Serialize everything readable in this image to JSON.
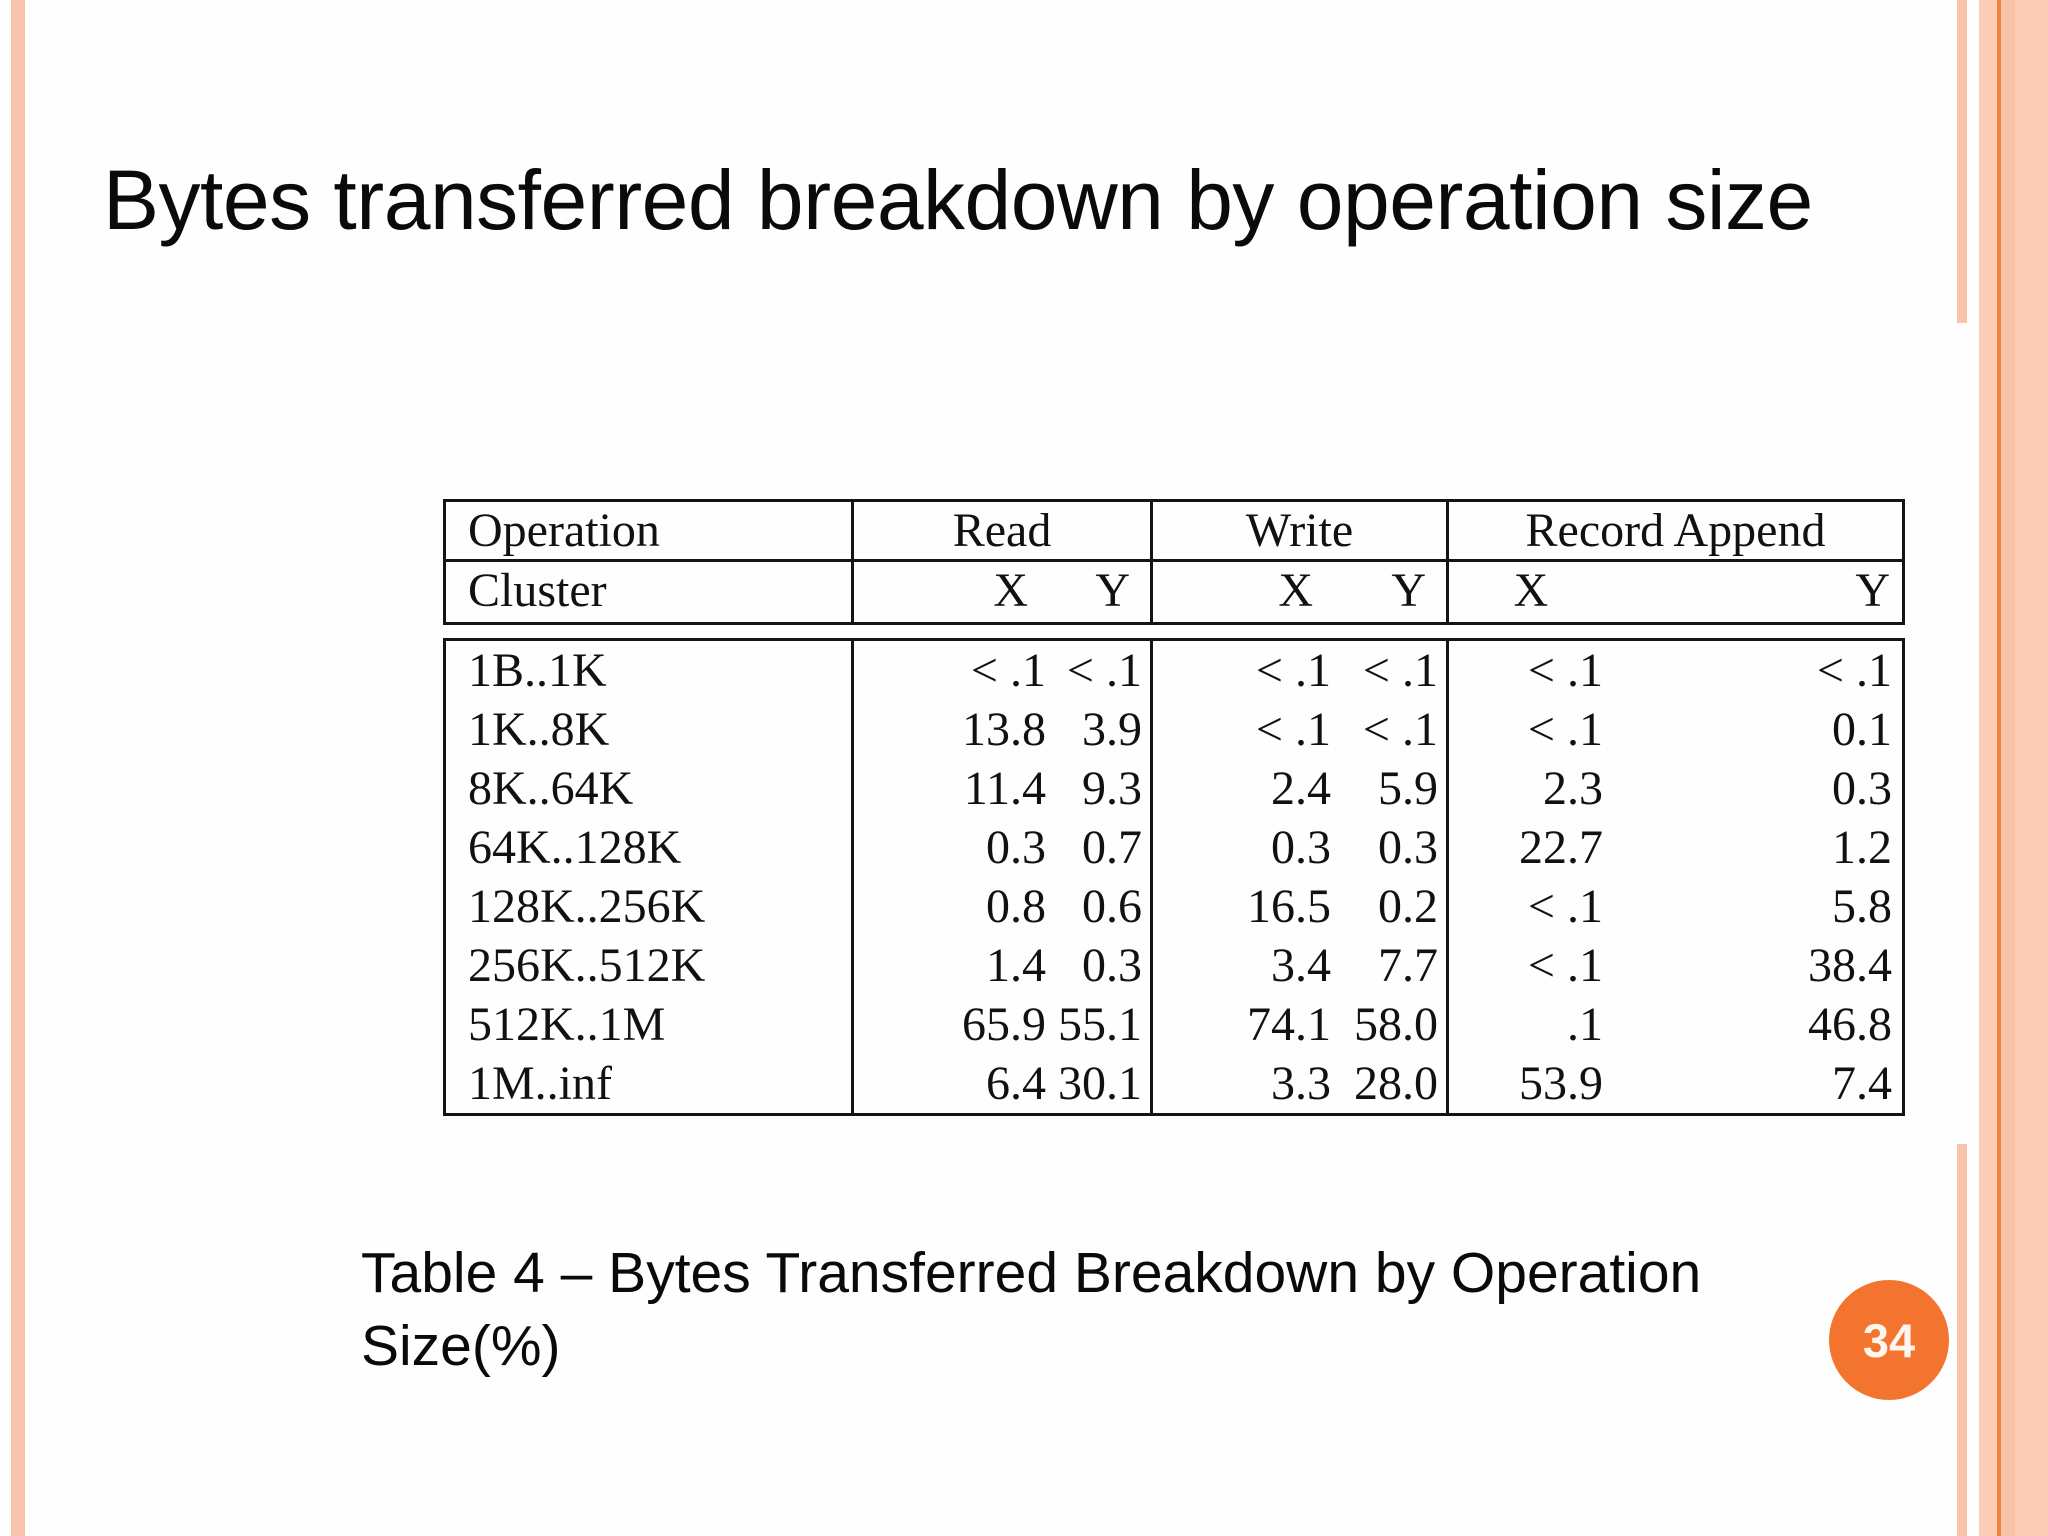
{
  "slide": {
    "title": "Bytes transferred breakdown by operation size",
    "caption_line1": "Table 4 – Bytes Transferred Breakdown by Operation",
    "caption_line2": "Size(%)",
    "page_number": "34"
  },
  "colors": {
    "stripe_light": "#f8c4ac",
    "band_base": "#fccdb5",
    "band_shade": "#f9c3a9",
    "band_line": "#f0813e",
    "page_badge": "#f3742f"
  },
  "chart_data": {
    "type": "table",
    "title": "Bytes Transferred Breakdown by Operation Size (%)",
    "column_groups": [
      {
        "label": "Operation",
        "columns": [
          "Cluster"
        ]
      },
      {
        "label": "Read",
        "columns": [
          "X",
          "Y"
        ]
      },
      {
        "label": "Write",
        "columns": [
          "X",
          "Y"
        ]
      },
      {
        "label": "Record Append",
        "columns": [
          "X",
          "Y"
        ]
      }
    ],
    "rows": [
      [
        "1B..1K",
        "< .1",
        "< .1",
        "< .1",
        "< .1",
        "< .1",
        "< .1"
      ],
      [
        "1K..8K",
        "13.8",
        "3.9",
        "< .1",
        "< .1",
        "< .1",
        "0.1"
      ],
      [
        "8K..64K",
        "11.4",
        "9.3",
        "2.4",
        "5.9",
        "2.3",
        "0.3"
      ],
      [
        "64K..128K",
        "0.3",
        "0.7",
        "0.3",
        "0.3",
        "22.7",
        "1.2"
      ],
      [
        "128K..256K",
        "0.8",
        "0.6",
        "16.5",
        "0.2",
        "< .1",
        "5.8"
      ],
      [
        "256K..512K",
        "1.4",
        "0.3",
        "3.4",
        "7.7",
        "< .1",
        "38.4"
      ],
      [
        "512K..1M",
        "65.9",
        "55.1",
        "74.1",
        "58.0",
        ".1",
        "46.8"
      ],
      [
        "1M..inf",
        "6.4",
        "30.1",
        "3.3",
        "28.0",
        "53.9",
        "7.4"
      ]
    ]
  }
}
